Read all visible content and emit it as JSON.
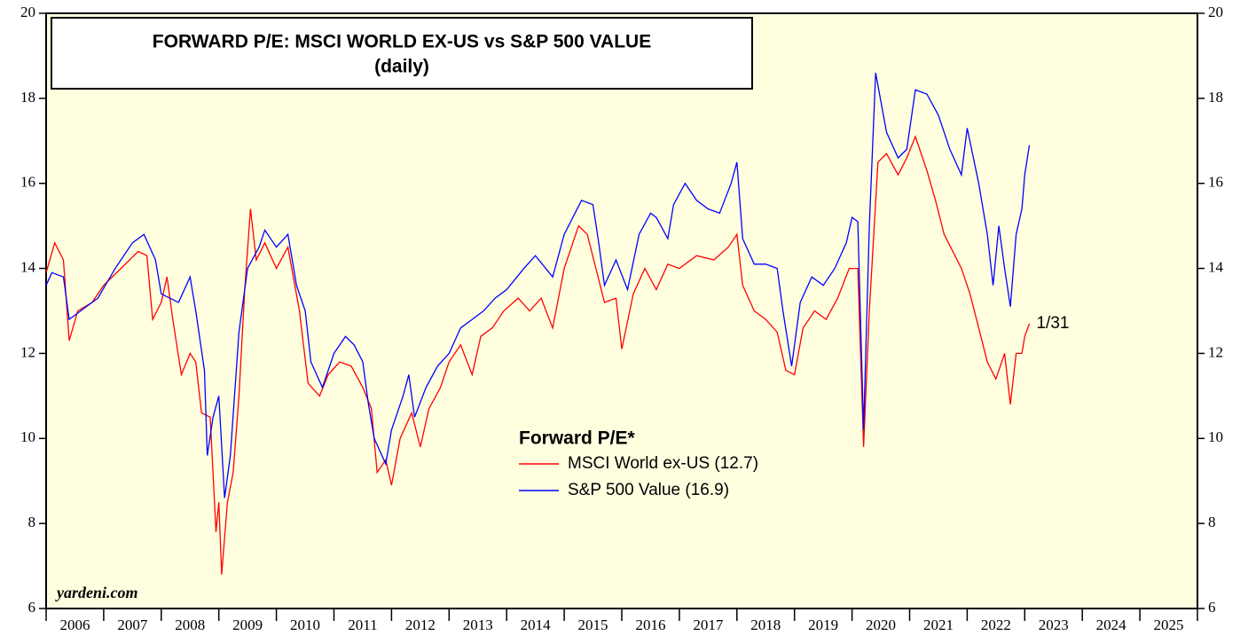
{
  "chart_data": {
    "type": "line",
    "title": "FORWARD P/E: MSCI WORLD EX-US vs S&P 500 VALUE",
    "subtitle": "(daily)",
    "legend_title": "Forward P/E*",
    "source": "yardeni.com",
    "annotation": {
      "text": "1/31",
      "color": "#ff0000"
    },
    "xlim": [
      2006,
      2026
    ],
    "xticks": [
      2006,
      2007,
      2008,
      2009,
      2010,
      2011,
      2012,
      2013,
      2014,
      2015,
      2016,
      2017,
      2018,
      2019,
      2020,
      2021,
      2022,
      2023,
      2024,
      2025,
      2026
    ],
    "xlabels": [
      2006,
      2007,
      2008,
      2009,
      2010,
      2011,
      2012,
      2013,
      2014,
      2015,
      2016,
      2017,
      2018,
      2019,
      2020,
      2021,
      2022,
      2023,
      2024,
      2025
    ],
    "ylim": [
      6,
      20
    ],
    "yticks": [
      6,
      8,
      10,
      12,
      14,
      16,
      18,
      20
    ],
    "y2lim": [
      6,
      20
    ],
    "y2ticks": [
      6,
      8,
      10,
      12,
      14,
      16,
      18,
      20
    ],
    "background": "#ffffe0",
    "series": [
      {
        "name": "MSCI World ex-US (12.7)",
        "color": "#ff0000",
        "x": [
          2006.0,
          2006.15,
          2006.3,
          2006.4,
          2006.55,
          2006.8,
          2007.0,
          2007.3,
          2007.6,
          2007.75,
          2007.85,
          2008.0,
          2008.1,
          2008.2,
          2008.35,
          2008.5,
          2008.6,
          2008.7,
          2008.85,
          2008.95,
          2009.0,
          2009.05,
          2009.15,
          2009.25,
          2009.35,
          2009.45,
          2009.55,
          2009.65,
          2009.8,
          2010.0,
          2010.2,
          2010.4,
          2010.55,
          2010.75,
          2010.9,
          2011.1,
          2011.3,
          2011.5,
          2011.65,
          2011.75,
          2011.9,
          2012.0,
          2012.15,
          2012.35,
          2012.5,
          2012.65,
          2012.85,
          2013.0,
          2013.2,
          2013.4,
          2013.55,
          2013.75,
          2013.95,
          2014.2,
          2014.4,
          2014.6,
          2014.8,
          2015.0,
          2015.25,
          2015.4,
          2015.55,
          2015.7,
          2015.9,
          2016.0,
          2016.2,
          2016.4,
          2016.6,
          2016.8,
          2017.0,
          2017.3,
          2017.6,
          2017.85,
          2018.0,
          2018.1,
          2018.3,
          2018.5,
          2018.7,
          2018.85,
          2019.0,
          2019.15,
          2019.35,
          2019.55,
          2019.75,
          2019.95,
          2020.1,
          2020.2,
          2020.3,
          2020.45,
          2020.6,
          2020.8,
          2020.95,
          2021.1,
          2021.3,
          2021.45,
          2021.6,
          2021.75,
          2021.9,
          2022.05,
          2022.2,
          2022.35,
          2022.5,
          2022.65,
          2022.75,
          2022.85,
          2022.95,
          2023.0,
          2023.08
        ],
        "values": [
          13.9,
          14.6,
          14.2,
          12.3,
          13.0,
          13.2,
          13.6,
          14.0,
          14.4,
          14.3,
          12.8,
          13.2,
          13.8,
          12.8,
          11.5,
          12.0,
          11.8,
          10.6,
          10.5,
          7.8,
          8.5,
          6.8,
          8.5,
          9.2,
          11.0,
          13.5,
          15.4,
          14.2,
          14.6,
          14.0,
          14.5,
          13.0,
          11.3,
          11.0,
          11.5,
          11.8,
          11.7,
          11.2,
          10.7,
          9.2,
          9.5,
          8.9,
          10.0,
          10.6,
          9.8,
          10.7,
          11.2,
          11.8,
          12.2,
          11.5,
          12.4,
          12.6,
          13.0,
          13.3,
          13.0,
          13.3,
          12.6,
          14.0,
          15.0,
          14.8,
          14.0,
          13.2,
          13.3,
          12.1,
          13.4,
          14.0,
          13.5,
          14.1,
          14.0,
          14.3,
          14.2,
          14.5,
          14.8,
          13.6,
          13.0,
          12.8,
          12.5,
          11.6,
          11.5,
          12.6,
          13.0,
          12.8,
          13.3,
          14.0,
          14.0,
          9.8,
          13.0,
          16.5,
          16.7,
          16.2,
          16.6,
          17.1,
          16.3,
          15.6,
          14.8,
          14.4,
          14.0,
          13.4,
          12.6,
          11.8,
          11.4,
          12.0,
          10.8,
          12.0,
          12.0,
          12.4,
          12.7
        ]
      },
      {
        "name": "S&P 500 Value (16.9)",
        "color": "#0000ff",
        "x": [
          2006.0,
          2006.1,
          2006.3,
          2006.4,
          2006.6,
          2006.9,
          2007.2,
          2007.5,
          2007.7,
          2007.9,
          2008.0,
          2008.3,
          2008.5,
          2008.6,
          2008.75,
          2008.8,
          2008.9,
          2009.0,
          2009.1,
          2009.2,
          2009.35,
          2009.5,
          2009.7,
          2009.8,
          2010.0,
          2010.2,
          2010.35,
          2010.5,
          2010.6,
          2010.8,
          2011.0,
          2011.2,
          2011.35,
          2011.5,
          2011.6,
          2011.7,
          2011.8,
          2011.9,
          2012.0,
          2012.2,
          2012.3,
          2012.4,
          2012.6,
          2012.8,
          2013.0,
          2013.2,
          2013.4,
          2013.6,
          2013.8,
          2014.0,
          2014.3,
          2014.5,
          2014.8,
          2015.0,
          2015.3,
          2015.5,
          2015.6,
          2015.7,
          2015.9,
          2016.1,
          2016.3,
          2016.5,
          2016.6,
          2016.8,
          2016.9,
          2017.1,
          2017.3,
          2017.5,
          2017.7,
          2017.9,
          2018.0,
          2018.1,
          2018.3,
          2018.5,
          2018.7,
          2018.8,
          2018.95,
          2019.1,
          2019.3,
          2019.5,
          2019.7,
          2019.9,
          2020.0,
          2020.1,
          2020.2,
          2020.3,
          2020.41,
          2020.6,
          2020.8,
          2020.95,
          2021.1,
          2021.3,
          2021.5,
          2021.7,
          2021.9,
          2022.0,
          2022.2,
          2022.35,
          2022.45,
          2022.55,
          2022.65,
          2022.75,
          2022.85,
          2022.95,
          2023.0,
          2023.08
        ],
        "values": [
          13.6,
          13.9,
          13.8,
          12.8,
          13.0,
          13.3,
          14.0,
          14.6,
          14.8,
          14.2,
          13.4,
          13.2,
          13.8,
          13.0,
          11.6,
          9.6,
          10.5,
          11.0,
          8.6,
          9.6,
          12.5,
          14.0,
          14.5,
          14.9,
          14.5,
          14.8,
          13.6,
          13.0,
          11.8,
          11.2,
          12.0,
          12.4,
          12.2,
          11.8,
          10.8,
          10.0,
          9.7,
          9.4,
          10.2,
          11.0,
          11.5,
          10.5,
          11.2,
          11.7,
          12.0,
          12.6,
          12.8,
          13.0,
          13.3,
          13.5,
          14.0,
          14.3,
          13.8,
          14.8,
          15.6,
          15.5,
          14.6,
          13.6,
          14.2,
          13.5,
          14.8,
          15.3,
          15.2,
          14.7,
          15.5,
          16.0,
          15.6,
          15.4,
          15.3,
          16.0,
          16.5,
          14.7,
          14.1,
          14.1,
          14.0,
          13.0,
          11.7,
          13.2,
          13.8,
          13.6,
          14.0,
          14.6,
          15.2,
          15.1,
          10.2,
          15.0,
          18.6,
          17.2,
          16.6,
          16.8,
          18.2,
          18.1,
          17.6,
          16.8,
          16.2,
          17.3,
          16.0,
          14.8,
          13.6,
          15.0,
          14.0,
          13.1,
          14.8,
          15.4,
          16.2,
          16.9
        ]
      }
    ]
  }
}
